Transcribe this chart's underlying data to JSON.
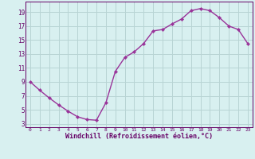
{
  "x": [
    0,
    1,
    2,
    3,
    4,
    5,
    6,
    7,
    8,
    9,
    10,
    11,
    12,
    13,
    14,
    15,
    16,
    17,
    18,
    19,
    20,
    21,
    22,
    23
  ],
  "y": [
    9,
    7.8,
    6.7,
    5.7,
    4.8,
    4.0,
    3.6,
    3.5,
    6.0,
    10.5,
    12.5,
    13.3,
    14.5,
    16.3,
    16.5,
    17.3,
    18.0,
    19.2,
    19.5,
    19.2,
    18.2,
    17.0,
    16.5,
    14.5
  ],
  "line_color": "#993399",
  "marker": "D",
  "marker_size": 2.2,
  "bg_color": "#d8f0f0",
  "grid_color": "#b8d4d4",
  "xlabel": "Windchill (Refroidissement éolien,°C)",
  "xlabel_color": "#660066",
  "tick_color": "#660066",
  "yticks": [
    3,
    5,
    7,
    9,
    11,
    13,
    15,
    17,
    19
  ],
  "xticks": [
    0,
    1,
    2,
    3,
    4,
    5,
    6,
    7,
    8,
    9,
    10,
    11,
    12,
    13,
    14,
    15,
    16,
    17,
    18,
    19,
    20,
    21,
    22,
    23
  ],
  "ylim": [
    2.5,
    20.5
  ],
  "xlim": [
    -0.5,
    23.5
  ]
}
